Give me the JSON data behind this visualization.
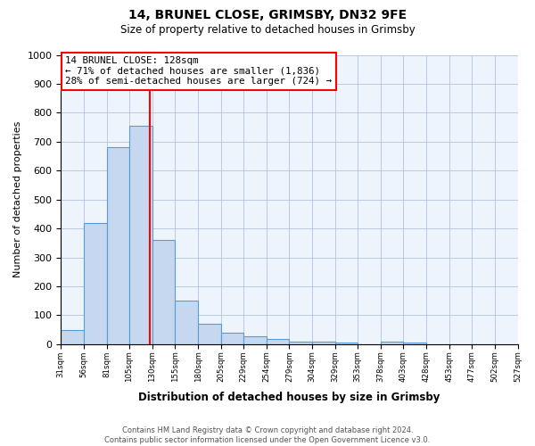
{
  "title1": "14, BRUNEL CLOSE, GRIMSBY, DN32 9FE",
  "title2": "Size of property relative to detached houses in Grimsby",
  "xlabel": "Distribution of detached houses by size in Grimsby",
  "ylabel": "Number of detached properties",
  "bin_edges": [
    31,
    56,
    81,
    105,
    130,
    155,
    180,
    205,
    229,
    254,
    279,
    304,
    329,
    353,
    378,
    403,
    428,
    453,
    477,
    502,
    527
  ],
  "bar_heights": [
    50,
    420,
    680,
    755,
    360,
    150,
    70,
    40,
    27,
    17,
    10,
    8,
    5,
    0,
    8,
    5,
    0,
    0,
    0,
    0
  ],
  "bar_color": "#C5D8EF",
  "bar_edge_color": "#5B9BD5",
  "property_line_x": 128,
  "property_line_color": "red",
  "ylim": [
    0,
    1000
  ],
  "annotation_line1": "14 BRUNEL CLOSE: 128sqm",
  "annotation_line2": "← 71% of detached houses are smaller (1,836)",
  "annotation_line3": "28% of semi-detached houses are larger (724) →",
  "footnote1": "Contains HM Land Registry data © Crown copyright and database right 2024.",
  "footnote2": "Contains public sector information licensed under the Open Government Licence v3.0.",
  "background_color": "#ffffff",
  "plot_bg_color": "#EEF4FB",
  "grid_color": "#b0c4de"
}
